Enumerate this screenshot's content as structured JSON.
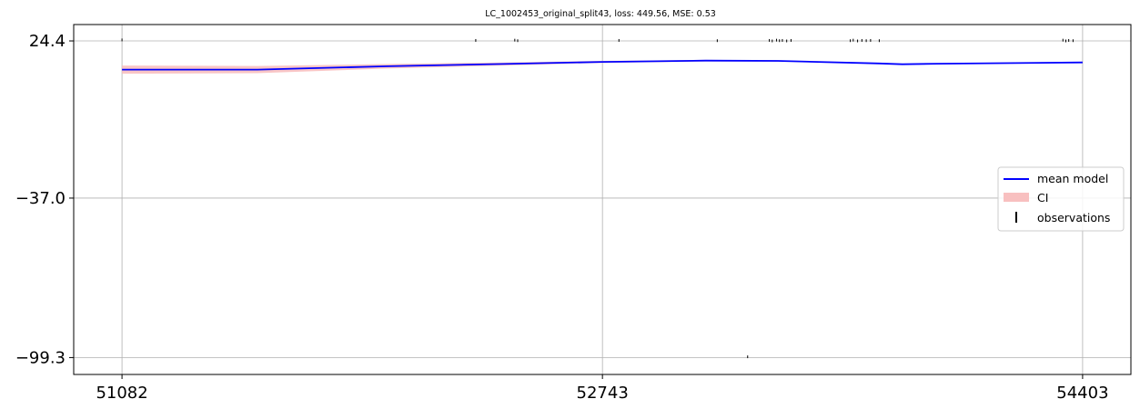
{
  "chart_data": {
    "type": "line",
    "title": "LC_1002453_original_split43, loss: 449.56, MSE: 0.53",
    "xlabel": "",
    "ylabel": "",
    "x_ticks": [
      51082,
      52743,
      54403
    ],
    "y_ticks": [
      24.4,
      -37.0,
      -99.3
    ],
    "x_tick_labels": [
      "51082",
      "52743",
      "54403"
    ],
    "y_tick_labels": [
      "24.4",
      "−37.0",
      "−99.3"
    ],
    "xlim": [
      50915,
      54570
    ],
    "ylim": [
      -105.9,
      30.8
    ],
    "grid": true,
    "legend_position": "center-right",
    "series": [
      {
        "name": "mean model",
        "kind": "line",
        "color": "#0000ff",
        "x": [
          51082,
          51550,
          52000,
          52400,
          52743,
          53100,
          53350,
          53700,
          53780,
          53900,
          54403
        ],
        "y": [
          13.2,
          13.2,
          14.5,
          15.4,
          16.2,
          16.7,
          16.6,
          15.6,
          15.3,
          15.5,
          16.0
        ]
      },
      {
        "name": "CI",
        "kind": "band",
        "color": "#f4a8a8",
        "x": [
          51082,
          51550,
          52000,
          52400,
          52743,
          53100,
          53350,
          53700,
          53780,
          53900,
          54403
        ],
        "lower": [
          11.6,
          11.8,
          13.6,
          14.8,
          15.8,
          16.4,
          16.4,
          15.4,
          15.1,
          15.3,
          15.8
        ],
        "upper": [
          14.8,
          14.6,
          15.4,
          16.0,
          16.6,
          17.0,
          16.8,
          15.8,
          15.5,
          15.7,
          16.2
        ]
      },
      {
        "name": "observations",
        "kind": "errorbar",
        "color": "#000000",
        "x": [
          51082,
          52305,
          52440,
          52450,
          52800,
          53140,
          53320,
          53330,
          53345,
          53355,
          53365,
          53380,
          53395,
          53600,
          53610,
          53625,
          53640,
          53655,
          53670,
          53700,
          54335,
          54345,
          54355,
          54370,
          53245
        ],
        "y": [
          24.8,
          24.6,
          24.7,
          24.5,
          24.6,
          24.5,
          24.6,
          24.4,
          24.7,
          24.5,
          24.6,
          24.4,
          24.6,
          24.5,
          24.7,
          24.4,
          24.6,
          24.5,
          24.6,
          24.5,
          24.7,
          24.4,
          24.6,
          24.5,
          -99.0
        ]
      }
    ]
  }
}
